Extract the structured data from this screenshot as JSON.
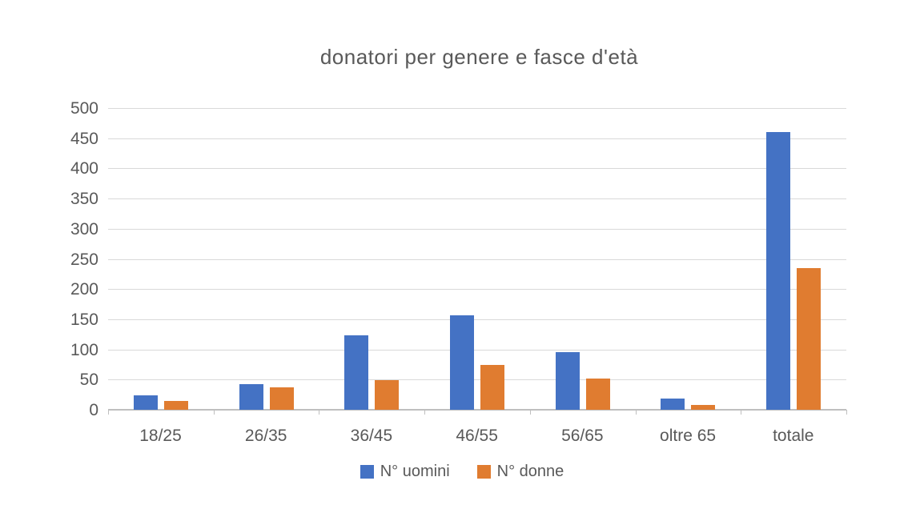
{
  "page": {
    "background_color": "#ffffff",
    "text_color": "#595959",
    "gridline_color": "#d9d9d9",
    "axis_line_color": "#bfbfbf"
  },
  "chart_data": {
    "type": "bar",
    "title": "donatori per genere e fasce d'età",
    "xlabel": "",
    "ylabel": "",
    "categories": [
      "18/25",
      "26/35",
      "36/45",
      "46/55",
      "56/65",
      "oltre 65",
      "totale"
    ],
    "series": [
      {
        "name": "N° uomini",
        "color": "#4472c4",
        "values": [
          24,
          42,
          124,
          157,
          95,
          18,
          460
        ]
      },
      {
        "name": "N° donne",
        "color": "#e07c30",
        "values": [
          15,
          37,
          49,
          74,
          52,
          8,
          235
        ]
      }
    ],
    "ylim": [
      0,
      500
    ],
    "ytick_step": 50,
    "yticks": [
      0,
      50,
      100,
      150,
      200,
      250,
      300,
      350,
      400,
      450,
      500
    ],
    "grid": true,
    "legend_position": "bottom"
  }
}
